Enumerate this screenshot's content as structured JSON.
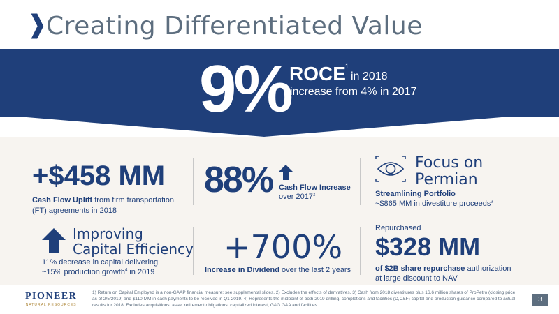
{
  "header": {
    "chevron": "❱",
    "title": "Creating Differentiated Value"
  },
  "banner": {
    "big_value": "9%",
    "metric": "ROCE",
    "metric_sup": "1",
    "metric_year": "in 2018",
    "subline": "increase from 4% in 2017"
  },
  "cash_flow_uplift": {
    "value": "+$458 MM",
    "label_bold": "Cash Flow Uplift",
    "label_rest": "from firm transportation (FT) agreements in 2018"
  },
  "cash_flow_increase": {
    "value": "88%",
    "arrow_icon": "up-arrow-icon",
    "label": "Cash Flow Increase",
    "sub": "over 2017",
    "sub_sup": "2"
  },
  "focus_permian": {
    "icon": "eye-icon",
    "title_line1": "Focus on",
    "title_line2": "Permian",
    "label": "Streamlining Portfolio",
    "sub": "~$865 MM in divestiture proceeds",
    "sub_sup": "3"
  },
  "capital_efficiency": {
    "arrow_icon": "up-arrow-icon",
    "title_line1": "Improving",
    "title_line2": "Capital Efficiency",
    "line1": "11% decrease in capital delivering",
    "line2_pre": "~15% production growth",
    "line2_sup": "4",
    "line2_post": " in 2019"
  },
  "dividend": {
    "value": "+700%",
    "label_bold": "Increase in Dividend",
    "label_rest": "over the last 2 years"
  },
  "repurchase": {
    "caption": "Repurchased",
    "value": "$328 MM",
    "line1_bold": "of $2B share repurchase",
    "line1_rest": "authorization",
    "line2": "at large discount to NAV"
  },
  "footer": {
    "logo_main": "PIONEER",
    "logo_sub": "NATURAL RESOURCES",
    "notes": "1) Return on Capital Employed is a non-GAAP financial measure; see supplemental slides.  2) Excludes the effects of derivatives.  3) Cash from 2018 divestitures plus 16.6 million shares of ProPetro (closing price as of 2/5/2019) and $110 MM in cash payments to be received in Q1 2019.  4) Represents the midpoint of both 2019 drilling, completions and facilities (D,C&F) capital and production guidance compared to actual results for 2018.  Excludes acquisitions, asset retirement obligations, capitalized interest, G&G G&A and facilities.",
    "page": "3"
  },
  "colors": {
    "navy": "#1f3f7a",
    "slate": "#5d6e7f",
    "panel": "#f7f4f0"
  }
}
